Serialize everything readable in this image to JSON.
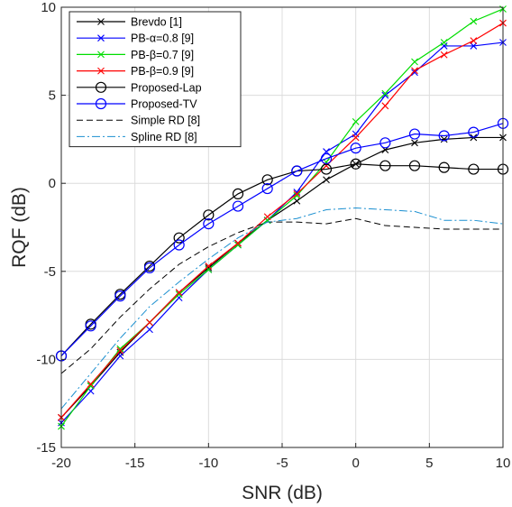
{
  "chart_data": {
    "type": "line",
    "xlabel": "SNR (dB)",
    "ylabel": "RQF (dB)",
    "xlim": [
      -20,
      10
    ],
    "ylim": [
      -15,
      10
    ],
    "xticks": [
      -20,
      -15,
      -10,
      -5,
      0,
      5,
      10
    ],
    "yticks": [
      -15,
      -10,
      -5,
      0,
      5,
      10
    ],
    "grid": true,
    "legend_position": "top-left",
    "x": [
      -20,
      -18,
      -16,
      -14,
      -12,
      -10,
      -8,
      -6,
      -4,
      -2,
      0,
      2,
      4,
      6,
      8,
      10
    ],
    "series": [
      {
        "name": "Brevdo [1]",
        "color": "#000000",
        "marker": "x",
        "dash": "solid",
        "values": [
          -13.3,
          -11.5,
          -9.6,
          -7.9,
          -6.2,
          -4.8,
          -3.4,
          -2.1,
          -1.0,
          0.2,
          1.1,
          1.9,
          2.3,
          2.5,
          2.6,
          2.6
        ]
      },
      {
        "name": "PB-α=0.8 [9]",
        "color": "#0000ff",
        "marker": "x",
        "dash": "solid",
        "values": [
          -13.6,
          -11.8,
          -9.8,
          -8.3,
          -6.5,
          -4.9,
          -3.5,
          -2.1,
          -0.5,
          1.8,
          2.8,
          5.0,
          6.3,
          7.8,
          7.8,
          8.0
        ]
      },
      {
        "name": "PB-β=0.7 [9]",
        "color": "#00dd00",
        "marker": "x",
        "dash": "solid",
        "values": [
          -13.8,
          -11.5,
          -9.4,
          -7.9,
          -6.3,
          -4.9,
          -3.5,
          -2.1,
          -0.7,
          1.2,
          3.5,
          5.1,
          6.9,
          8.0,
          9.2,
          9.9
        ]
      },
      {
        "name": "PB-β=0.9 [9]",
        "color": "#ff0000",
        "marker": "x",
        "dash": "solid",
        "values": [
          -13.3,
          -11.4,
          -9.5,
          -7.9,
          -6.2,
          -4.7,
          -3.4,
          -1.9,
          -0.6,
          1.0,
          2.6,
          4.4,
          6.4,
          7.3,
          8.1,
          9.1
        ]
      },
      {
        "name": "Proposed-Lap",
        "color": "#000000",
        "marker": "o",
        "dash": "solid",
        "values": [
          -9.8,
          -8.0,
          -6.3,
          -4.7,
          -3.1,
          -1.8,
          -0.6,
          0.2,
          0.7,
          0.8,
          1.1,
          1.0,
          1.0,
          0.9,
          0.8,
          0.8
        ]
      },
      {
        "name": "Proposed-TV",
        "color": "#0000ff",
        "marker": "o",
        "dash": "solid",
        "values": [
          -9.8,
          -8.1,
          -6.4,
          -4.8,
          -3.5,
          -2.3,
          -1.3,
          -0.3,
          0.7,
          1.4,
          2.0,
          2.3,
          2.8,
          2.7,
          2.9,
          3.4
        ]
      },
      {
        "name": "Simple RD [8]",
        "color": "#000000",
        "marker": "none",
        "dash": "dashed",
        "values": [
          -10.8,
          -9.4,
          -7.6,
          -6.0,
          -4.6,
          -3.6,
          -2.8,
          -2.2,
          -2.2,
          -2.3,
          -2.0,
          -2.4,
          -2.5,
          -2.6,
          -2.6,
          -2.6
        ]
      },
      {
        "name": "Spline RD [8]",
        "color": "#1a8fd0",
        "marker": "none",
        "dash": "dashdot",
        "values": [
          -12.8,
          -10.8,
          -8.8,
          -7.0,
          -5.6,
          -4.3,
          -3.1,
          -2.2,
          -2.0,
          -1.5,
          -1.4,
          -1.5,
          -1.6,
          -2.1,
          -2.1,
          -2.3
        ]
      }
    ]
  }
}
